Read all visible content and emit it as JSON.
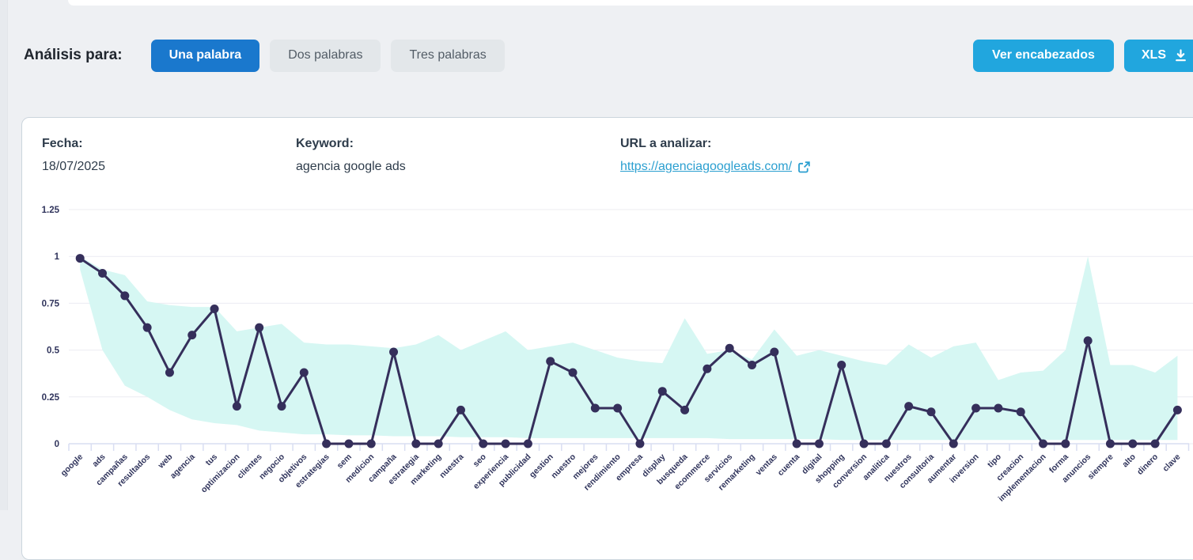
{
  "header": {
    "analysis_label": "Análisis para:",
    "tabs": [
      {
        "label": "Una palabra",
        "active": true
      },
      {
        "label": "Dos palabras",
        "active": false
      },
      {
        "label": "Tres palabras",
        "active": false
      }
    ],
    "actions": {
      "view_headers_label": "Ver encabezados",
      "xls_label": "XLS",
      "download_icon": "download-arrow-icon"
    }
  },
  "card": {
    "meta": {
      "date_label": "Fecha:",
      "date_value": "18/07/2025",
      "keyword_label": "Keyword:",
      "keyword_value": "agencia google ads",
      "url_label": "URL a analizar:",
      "url_value": "https://agenciagoogleads.com/",
      "external_link_icon": "external-link-icon"
    }
  },
  "colors": {
    "active_tab_blue": "#1a78cd",
    "cyan_button": "#21a6de",
    "link_cyan": "#2b9fd0",
    "line_color": "#352f5b",
    "band_fill": "#d6f7f3",
    "gridline": "#ececf2",
    "axis_tick": "#d9def2",
    "axis_text": "#30345c",
    "page_bg": "#eef0f3"
  },
  "chart_data": {
    "type": "line",
    "title": "",
    "xlabel": "",
    "ylabel": "",
    "ylim": [
      0,
      1.25
    ],
    "yticks": [
      0,
      0.25,
      0.5,
      0.75,
      1,
      1.25
    ],
    "ytick_labels": [
      "0",
      "0.25",
      "0.5",
      "0.75",
      "1",
      "1.25"
    ],
    "grid": true,
    "legend": "none",
    "x_label_rotation": -45,
    "categories": [
      "google",
      "ads",
      "campañas",
      "resultados",
      "web",
      "agencia",
      "tus",
      "optimizacion",
      "clientes",
      "negocio",
      "objetivos",
      "estrategias",
      "sem",
      "medicion",
      "campaña",
      "estrategia",
      "marketing",
      "nuestra",
      "seo",
      "experiencia",
      "publicidad",
      "gestion",
      "nuestro",
      "mejores",
      "rendimiento",
      "empresa",
      "display",
      "busqueda",
      "ecommerce",
      "servicios",
      "remarketing",
      "ventas",
      "cuenta",
      "digital",
      "shopping",
      "conversion",
      "analitica",
      "nuestros",
      "consultoria",
      "aumentar",
      "inversion",
      "tipo",
      "creacion",
      "implementacion",
      "forma",
      "anuncios",
      "siempre",
      "alto",
      "dinero",
      "clave"
    ],
    "series": [
      {
        "name": "keyword-frequency-line",
        "type": "line-with-markers",
        "values": [
          0.99,
          0.91,
          0.79,
          0.62,
          0.38,
          0.58,
          0.72,
          0.2,
          0.62,
          0.2,
          0.38,
          0,
          0,
          0,
          0.49,
          0,
          0,
          0.18,
          0,
          0,
          0,
          0.44,
          0.38,
          0.19,
          0.19,
          0,
          0.28,
          0.18,
          0.4,
          0.51,
          0.42,
          0.49,
          0,
          0,
          0.42,
          0,
          0,
          0.2,
          0.17,
          0,
          0.19,
          0.19,
          0.17,
          0,
          0,
          0.55,
          0,
          0,
          0,
          0.18
        ]
      },
      {
        "name": "range-band-upper",
        "type": "band-upper",
        "values": [
          1.0,
          0.93,
          0.9,
          0.76,
          0.74,
          0.73,
          0.73,
          0.6,
          0.62,
          0.64,
          0.54,
          0.53,
          0.53,
          0.52,
          0.51,
          0.53,
          0.58,
          0.5,
          0.55,
          0.6,
          0.5,
          0.52,
          0.54,
          0.5,
          0.46,
          0.44,
          0.43,
          0.67,
          0.48,
          0.5,
          0.45,
          0.61,
          0.47,
          0.5,
          0.47,
          0.44,
          0.42,
          0.53,
          0.46,
          0.52,
          0.54,
          0.34,
          0.38,
          0.39,
          0.5,
          1.0,
          0.42,
          0.42,
          0.38,
          0.47
        ]
      },
      {
        "name": "range-band-lower",
        "type": "band-lower",
        "values": [
          0.93,
          0.5,
          0.31,
          0.25,
          0.18,
          0.13,
          0.11,
          0.1,
          0.07,
          0.06,
          0.05,
          0.05,
          0.045,
          0.045,
          0.04,
          0.04,
          0.04,
          0.035,
          0.035,
          0.035,
          0.03,
          0.03,
          0.03,
          0.03,
          0.03,
          0.03,
          0.03,
          0.03,
          0.03,
          0.025,
          0.025,
          0.025,
          0.025,
          0.025,
          0.02,
          0.02,
          0.02,
          0.02,
          0.02,
          0.02,
          0.02,
          0.02,
          0.02,
          0.02,
          0.02,
          0.02,
          0.02,
          0.02,
          0.02,
          0.02
        ]
      }
    ]
  }
}
